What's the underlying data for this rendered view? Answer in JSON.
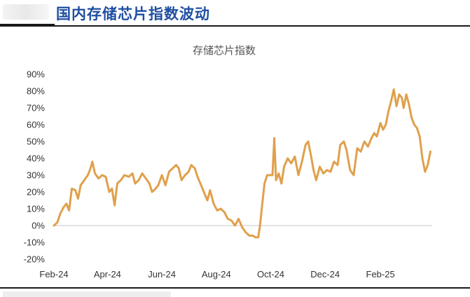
{
  "header": {
    "title": "国内存储芯片指数波动"
  },
  "chart_data": {
    "type": "line",
    "title": "存储芯片指数",
    "xlabel": "",
    "ylabel": "",
    "ylim": [
      -0.2,
      0.9
    ],
    "yticks": [
      -0.2,
      -0.1,
      0.0,
      0.1,
      0.2,
      0.3,
      0.4,
      0.5,
      0.6,
      0.7,
      0.8,
      0.9
    ],
    "ytick_labels": [
      "-20%",
      "-10%",
      "0%",
      "10%",
      "20%",
      "30%",
      "40%",
      "50%",
      "60%",
      "70%",
      "80%",
      "90%"
    ],
    "xticks": [
      "2024-02-01",
      "2024-04-01",
      "2024-06-01",
      "2024-08-01",
      "2024-10-01",
      "2024-12-01",
      "2025-02-01"
    ],
    "xtick_labels": [
      "Feb-24",
      "Apr-24",
      "Jun-24",
      "Aug-24",
      "Oct-24",
      "Dec-24",
      "Feb-25"
    ],
    "xlim": [
      "2024-02-01",
      "2025-03-31"
    ],
    "grid": false,
    "color": "#e0a04c",
    "series": [
      {
        "name": "",
        "points": [
          [
            "2024-02-01",
            0.0
          ],
          [
            "2024-02-05",
            0.02
          ],
          [
            "2024-02-08",
            0.07
          ],
          [
            "2024-02-12",
            0.11
          ],
          [
            "2024-02-15",
            0.13
          ],
          [
            "2024-02-18",
            0.09
          ],
          [
            "2024-02-21",
            0.22
          ],
          [
            "2024-02-25",
            0.21
          ],
          [
            "2024-02-28",
            0.16
          ],
          [
            "2024-03-02",
            0.24
          ],
          [
            "2024-03-06",
            0.27
          ],
          [
            "2024-03-10",
            0.3
          ],
          [
            "2024-03-13",
            0.34
          ],
          [
            "2024-03-15",
            0.38
          ],
          [
            "2024-03-18",
            0.31
          ],
          [
            "2024-03-22",
            0.28
          ],
          [
            "2024-03-26",
            0.3
          ],
          [
            "2024-03-30",
            0.29
          ],
          [
            "2024-04-03",
            0.2
          ],
          [
            "2024-04-06",
            0.22
          ],
          [
            "2024-04-09",
            0.12
          ],
          [
            "2024-04-12",
            0.25
          ],
          [
            "2024-04-16",
            0.27
          ],
          [
            "2024-04-20",
            0.3
          ],
          [
            "2024-04-25",
            0.29
          ],
          [
            "2024-04-29",
            0.31
          ],
          [
            "2024-05-02",
            0.25
          ],
          [
            "2024-05-06",
            0.27
          ],
          [
            "2024-05-10",
            0.31
          ],
          [
            "2024-05-14",
            0.28
          ],
          [
            "2024-05-18",
            0.25
          ],
          [
            "2024-05-21",
            0.2
          ],
          [
            "2024-05-25",
            0.22
          ],
          [
            "2024-05-28",
            0.24
          ],
          [
            "2024-06-01",
            0.3
          ],
          [
            "2024-06-05",
            0.24
          ],
          [
            "2024-06-09",
            0.32
          ],
          [
            "2024-06-13",
            0.34
          ],
          [
            "2024-06-17",
            0.36
          ],
          [
            "2024-06-20",
            0.34
          ],
          [
            "2024-06-23",
            0.27
          ],
          [
            "2024-06-27",
            0.3
          ],
          [
            "2024-07-01",
            0.32
          ],
          [
            "2024-07-04",
            0.36
          ],
          [
            "2024-07-08",
            0.34
          ],
          [
            "2024-07-11",
            0.29
          ],
          [
            "2024-07-15",
            0.24
          ],
          [
            "2024-07-18",
            0.2
          ],
          [
            "2024-07-22",
            0.15
          ],
          [
            "2024-07-25",
            0.21
          ],
          [
            "2024-07-29",
            0.13
          ],
          [
            "2024-08-02",
            0.09
          ],
          [
            "2024-08-06",
            0.1
          ],
          [
            "2024-08-10",
            0.08
          ],
          [
            "2024-08-14",
            0.04
          ],
          [
            "2024-08-18",
            0.03
          ],
          [
            "2024-08-22",
            0.0
          ],
          [
            "2024-08-26",
            0.04
          ],
          [
            "2024-08-30",
            -0.01
          ],
          [
            "2024-09-03",
            -0.04
          ],
          [
            "2024-09-07",
            -0.06
          ],
          [
            "2024-09-11",
            -0.06
          ],
          [
            "2024-09-14",
            -0.07
          ],
          [
            "2024-09-17",
            -0.07
          ],
          [
            "2024-09-19",
            0.0
          ],
          [
            "2024-09-21",
            0.1
          ],
          [
            "2024-09-24",
            0.25
          ],
          [
            "2024-09-27",
            0.3
          ],
          [
            "2024-10-01",
            0.3
          ],
          [
            "2024-10-03",
            0.3
          ],
          [
            "2024-10-05",
            0.52
          ],
          [
            "2024-10-07",
            0.27
          ],
          [
            "2024-10-10",
            0.31
          ],
          [
            "2024-10-13",
            0.25
          ],
          [
            "2024-10-16",
            0.35
          ],
          [
            "2024-10-20",
            0.4
          ],
          [
            "2024-10-24",
            0.37
          ],
          [
            "2024-10-28",
            0.41
          ],
          [
            "2024-11-01",
            0.3
          ],
          [
            "2024-11-05",
            0.38
          ],
          [
            "2024-11-09",
            0.48
          ],
          [
            "2024-11-12",
            0.5
          ],
          [
            "2024-11-15",
            0.42
          ],
          [
            "2024-11-18",
            0.33
          ],
          [
            "2024-11-21",
            0.27
          ],
          [
            "2024-11-25",
            0.35
          ],
          [
            "2024-11-29",
            0.31
          ],
          [
            "2024-12-03",
            0.33
          ],
          [
            "2024-12-07",
            0.32
          ],
          [
            "2024-12-11",
            0.38
          ],
          [
            "2024-12-15",
            0.36
          ],
          [
            "2024-12-18",
            0.48
          ],
          [
            "2024-12-22",
            0.5
          ],
          [
            "2024-12-25",
            0.45
          ],
          [
            "2024-12-29",
            0.33
          ],
          [
            "2025-01-02",
            0.3
          ],
          [
            "2025-01-06",
            0.46
          ],
          [
            "2025-01-10",
            0.44
          ],
          [
            "2025-01-14",
            0.5
          ],
          [
            "2025-01-18",
            0.47
          ],
          [
            "2025-01-22",
            0.52
          ],
          [
            "2025-01-25",
            0.55
          ],
          [
            "2025-01-28",
            0.53
          ],
          [
            "2025-02-01",
            0.61
          ],
          [
            "2025-02-04",
            0.57
          ],
          [
            "2025-02-07",
            0.6
          ],
          [
            "2025-02-10",
            0.68
          ],
          [
            "2025-02-13",
            0.74
          ],
          [
            "2025-02-16",
            0.81
          ],
          [
            "2025-02-19",
            0.71
          ],
          [
            "2025-02-22",
            0.78
          ],
          [
            "2025-02-25",
            0.76
          ],
          [
            "2025-02-27",
            0.7
          ],
          [
            "2025-03-02",
            0.78
          ],
          [
            "2025-03-05",
            0.72
          ],
          [
            "2025-03-08",
            0.64
          ],
          [
            "2025-03-11",
            0.6
          ],
          [
            "2025-03-14",
            0.58
          ],
          [
            "2025-03-17",
            0.53
          ],
          [
            "2025-03-20",
            0.4
          ],
          [
            "2025-03-23",
            0.32
          ],
          [
            "2025-03-26",
            0.36
          ],
          [
            "2025-03-29",
            0.44
          ]
        ]
      }
    ]
  }
}
